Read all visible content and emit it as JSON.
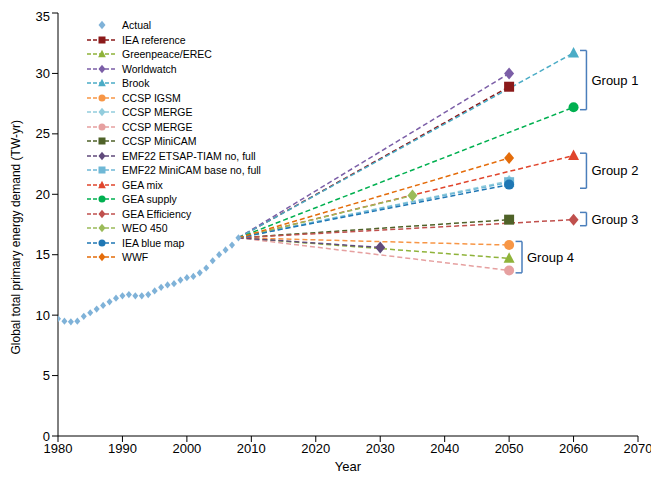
{
  "chart_data": {
    "type": "line",
    "x_label": "Year",
    "y_label": "Global total primary energy demand (TW-yr)",
    "xlim": [
      1980,
      2070
    ],
    "xticks": [
      1980,
      1990,
      2000,
      2010,
      2020,
      2030,
      2040,
      2050,
      2060,
      2070
    ],
    "ylim": [
      0,
      35
    ],
    "yticks": [
      0,
      5,
      10,
      15,
      20,
      25,
      30,
      35
    ],
    "grid": false,
    "legend": "upper left",
    "series": [
      {
        "name": "Actual",
        "color": "#7fb2d8",
        "marker": "diamond",
        "line_style": "none",
        "x": [
          1980,
          1981,
          1982,
          1983,
          1984,
          1985,
          1986,
          1987,
          1988,
          1989,
          1990,
          1991,
          1992,
          1993,
          1994,
          1995,
          1996,
          1997,
          1998,
          1999,
          2000,
          2001,
          2002,
          2003,
          2004,
          2005,
          2006,
          2007,
          2008
        ],
        "values": [
          9.7,
          9.5,
          9.45,
          9.5,
          9.9,
          10.2,
          10.5,
          10.8,
          11.1,
          11.4,
          11.6,
          11.7,
          11.6,
          11.6,
          11.7,
          12.0,
          12.3,
          12.5,
          12.6,
          12.9,
          13.1,
          13.2,
          13.5,
          13.9,
          14.5,
          15.0,
          15.4,
          15.8,
          16.4
        ]
      },
      {
        "name": "IEA reference",
        "color": "#8b1a1a",
        "marker": "square",
        "line_style": "dashed",
        "x": [
          2008,
          2050
        ],
        "values": [
          16.4,
          28.9
        ]
      },
      {
        "name": "Greenpeace/EREC",
        "color": "#8fb33a",
        "marker": "triangle",
        "line_style": "dashed",
        "x": [
          2008,
          2050
        ],
        "values": [
          16.4,
          14.7
        ]
      },
      {
        "name": "Worldwatch",
        "color": "#7b5ea7",
        "marker": "diamond",
        "line_style": "dashed",
        "x": [
          2008,
          2050
        ],
        "values": [
          16.4,
          30.0
        ]
      },
      {
        "name": "Brook",
        "color": "#4bacc6",
        "marker": "triangle",
        "line_style": "dashed",
        "x": [
          2008,
          2060
        ],
        "values": [
          16.4,
          31.7
        ]
      },
      {
        "name": "CCSP IGSM",
        "color": "#f79646",
        "marker": "circle",
        "line_style": "dashed",
        "x": [
          2008,
          2050
        ],
        "values": [
          16.4,
          15.8
        ]
      },
      {
        "name": "CCSP MERGE",
        "color": "#93cddd",
        "marker": "diamond",
        "line_style": "dashed",
        "x": [
          2008,
          2050
        ],
        "values": [
          16.4,
          21.1
        ]
      },
      {
        "name": "CCSP MERGE",
        "color": "#e6a0a0",
        "marker": "circle",
        "line_style": "dashed",
        "x": [
          2008,
          2050
        ],
        "values": [
          16.4,
          13.7
        ]
      },
      {
        "name": "CCSP MiniCAM",
        "color": "#4f6228",
        "marker": "square",
        "line_style": "dashed",
        "x": [
          2008,
          2050
        ],
        "values": [
          16.4,
          17.9
        ]
      },
      {
        "name": "EMF22 ETSAP-TIAM no, full",
        "color": "#604a7b",
        "marker": "diamond",
        "line_style": "dashed",
        "x": [
          2008,
          2030
        ],
        "values": [
          16.4,
          15.6
        ]
      },
      {
        "name": "EMF22 MiniCAM base no, full",
        "color": "#6fb8d6",
        "marker": "square",
        "line_style": "dashed",
        "x": [
          2008,
          2050
        ],
        "values": [
          16.4,
          21.0
        ]
      },
      {
        "name": "GEA mix",
        "color": "#e0452c",
        "marker": "triangle",
        "line_style": "dashed",
        "x": [
          2008,
          2060
        ],
        "values": [
          16.4,
          23.2
        ]
      },
      {
        "name": "GEA supply",
        "color": "#00b050",
        "marker": "circle",
        "line_style": "dashed",
        "x": [
          2008,
          2060
        ],
        "values": [
          16.4,
          27.2
        ]
      },
      {
        "name": "GEA Efficiency",
        "color": "#c0504d",
        "marker": "diamond",
        "line_style": "dashed",
        "x": [
          2008,
          2060
        ],
        "values": [
          16.4,
          17.9
        ]
      },
      {
        "name": "WEO 450",
        "color": "#9bbb59",
        "marker": "diamond",
        "line_style": "dashed",
        "x": [
          2008,
          2035
        ],
        "values": [
          16.4,
          19.9
        ]
      },
      {
        "name": "IEA blue map",
        "color": "#1f77b4",
        "marker": "circle",
        "line_style": "dashed",
        "x": [
          2008,
          2050
        ],
        "values": [
          16.4,
          20.8
        ]
      },
      {
        "name": "WWF",
        "color": "#e46c0a",
        "marker": "diamond",
        "line_style": "dashed",
        "x": [
          2008,
          2050
        ],
        "values": [
          16.4,
          23.0
        ]
      }
    ],
    "annotations": [
      {
        "text": "Group 1",
        "y_range": [
          27.0,
          31.9
        ]
      },
      {
        "text": "Group 2",
        "y_range": [
          20.5,
          23.4
        ]
      },
      {
        "text": "Group 3",
        "y_range": [
          17.4,
          18.5
        ]
      },
      {
        "text": "Group 4",
        "y_range": [
          13.5,
          16.1
        ]
      }
    ]
  }
}
